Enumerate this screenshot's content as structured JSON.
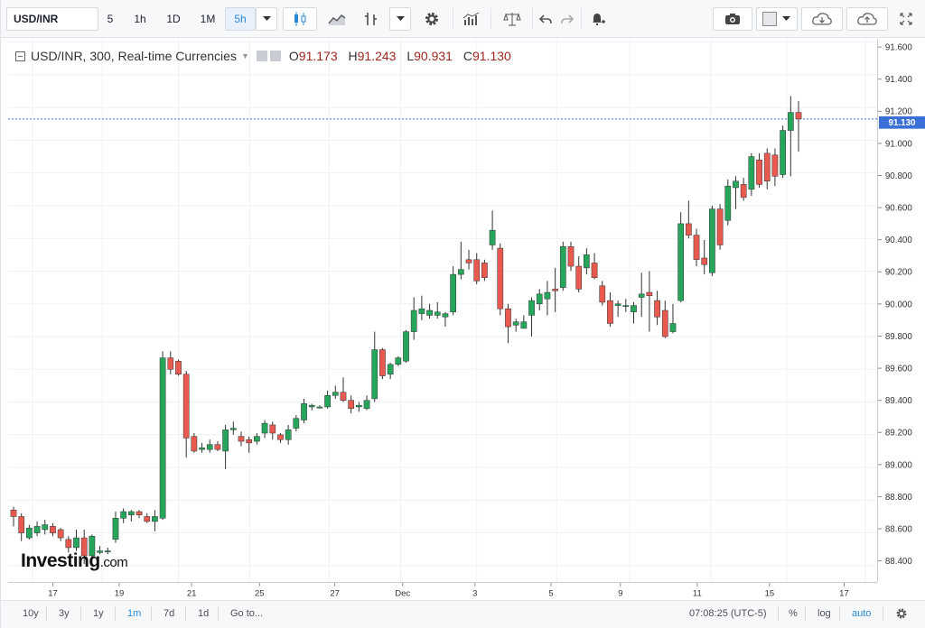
{
  "toolbar": {
    "symbol": "USD/INR",
    "intervals": [
      "5",
      "1h",
      "1D",
      "1M",
      "5h"
    ],
    "active_interval": "5h",
    "icons": [
      "candles-icon",
      "line-style-icon",
      "indicators-icon",
      "settings-icon",
      "chart-templates-icon",
      "compare-icon",
      "undo-icon",
      "redo-icon",
      "alert-icon",
      "camera-icon",
      "theme-icon",
      "load-cloud-icon",
      "save-cloud-icon",
      "fullscreen-icon"
    ]
  },
  "legend": {
    "title": "USD/INR, 300, Real-time Currencies",
    "open_label": "O",
    "open": "91.173",
    "high_label": "H",
    "high": "91.243",
    "low_label": "L",
    "low": "90.931",
    "close_label": "C",
    "close": "91.130"
  },
  "logo": {
    "text": "Investing",
    "suffix": ".com"
  },
  "bottombar": {
    "ranges": [
      "10y",
      "3y",
      "1y",
      "1m",
      "7d",
      "1d"
    ],
    "active_range": "1m",
    "goto": "Go to...",
    "time": "07:08:25 (UTC-5)",
    "percent": "%",
    "log": "log",
    "auto": "auto"
  },
  "colors": {
    "up": "#26a65b",
    "down": "#e8594f",
    "price_line": "#3a6fd8",
    "price_label_bg": "#3a6fd8"
  },
  "chart_data": {
    "type": "candlestick",
    "title": "USD/INR, 300, Real-time Currencies",
    "ylim": [
      88.3,
      91.62
    ],
    "yticks": [
      "91.600",
      "91.400",
      "91.200",
      "91.000",
      "90.800",
      "90.600",
      "90.400",
      "90.200",
      "90.000",
      "89.800",
      "89.600",
      "89.400",
      "89.200",
      "89.000",
      "88.800",
      "88.600",
      "88.400"
    ],
    "xticks": [
      "17",
      "19",
      "21",
      "25",
      "27",
      "Dec",
      "3",
      "5",
      "9",
      "11",
      "15",
      "17"
    ],
    "last_price": "91.130",
    "candles": [
      {
        "o": 88.74,
        "h": 88.76,
        "l": 88.64,
        "c": 88.7
      },
      {
        "o": 88.7,
        "h": 88.72,
        "l": 88.55,
        "c": 88.6
      },
      {
        "o": 88.57,
        "h": 88.65,
        "l": 88.56,
        "c": 88.63
      },
      {
        "o": 88.6,
        "h": 88.67,
        "l": 88.58,
        "c": 88.64
      },
      {
        "o": 88.62,
        "h": 88.68,
        "l": 88.59,
        "c": 88.65
      },
      {
        "o": 88.64,
        "h": 88.66,
        "l": 88.58,
        "c": 88.6
      },
      {
        "o": 88.62,
        "h": 88.63,
        "l": 88.55,
        "c": 88.57
      },
      {
        "o": 88.56,
        "h": 88.58,
        "l": 88.48,
        "c": 88.51
      },
      {
        "o": 88.51,
        "h": 88.62,
        "l": 88.49,
        "c": 88.57
      },
      {
        "o": 88.57,
        "h": 88.62,
        "l": 88.41,
        "c": 88.46
      },
      {
        "o": 88.46,
        "h": 88.59,
        "l": 88.44,
        "c": 88.58
      },
      {
        "o": 88.48,
        "h": 88.52,
        "l": 88.47,
        "c": 88.49
      },
      {
        "o": 88.49,
        "h": 88.51,
        "l": 88.47,
        "c": 88.49
      },
      {
        "o": 88.56,
        "h": 88.73,
        "l": 88.54,
        "c": 88.69
      },
      {
        "o": 88.69,
        "h": 88.75,
        "l": 88.66,
        "c": 88.73
      },
      {
        "o": 88.71,
        "h": 88.74,
        "l": 88.67,
        "c": 88.73
      },
      {
        "o": 88.73,
        "h": 88.74,
        "l": 88.69,
        "c": 88.71
      },
      {
        "o": 88.7,
        "h": 88.72,
        "l": 88.66,
        "c": 88.67
      },
      {
        "o": 88.67,
        "h": 88.74,
        "l": 88.61,
        "c": 88.7
      },
      {
        "o": 88.69,
        "h": 89.71,
        "l": 88.68,
        "c": 89.67
      },
      {
        "o": 89.67,
        "h": 89.71,
        "l": 89.57,
        "c": 89.6
      },
      {
        "o": 89.65,
        "h": 89.66,
        "l": 89.56,
        "c": 89.57
      },
      {
        "o": 89.57,
        "h": 89.59,
        "l": 89.06,
        "c": 89.18
      },
      {
        "o": 89.19,
        "h": 89.21,
        "l": 89.09,
        "c": 89.1
      },
      {
        "o": 89.11,
        "h": 89.15,
        "l": 89.09,
        "c": 89.12
      },
      {
        "o": 89.11,
        "h": 89.17,
        "l": 89.09,
        "c": 89.14
      },
      {
        "o": 89.14,
        "h": 89.16,
        "l": 89.1,
        "c": 89.11
      },
      {
        "o": 89.1,
        "h": 89.26,
        "l": 88.99,
        "c": 89.23
      },
      {
        "o": 89.23,
        "h": 89.28,
        "l": 89.2,
        "c": 89.24
      },
      {
        "o": 89.19,
        "h": 89.22,
        "l": 89.13,
        "c": 89.16
      },
      {
        "o": 89.17,
        "h": 89.19,
        "l": 89.09,
        "c": 89.15
      },
      {
        "o": 89.16,
        "h": 89.21,
        "l": 89.14,
        "c": 89.19
      },
      {
        "o": 89.21,
        "h": 89.29,
        "l": 89.18,
        "c": 89.27
      },
      {
        "o": 89.26,
        "h": 89.28,
        "l": 89.17,
        "c": 89.21
      },
      {
        "o": 89.2,
        "h": 89.21,
        "l": 89.15,
        "c": 89.17
      },
      {
        "o": 89.17,
        "h": 89.26,
        "l": 89.14,
        "c": 89.23
      },
      {
        "o": 89.24,
        "h": 89.32,
        "l": 89.22,
        "c": 89.3
      },
      {
        "o": 89.29,
        "h": 89.42,
        "l": 89.27,
        "c": 89.39
      },
      {
        "o": 89.37,
        "h": 89.39,
        "l": 89.35,
        "c": 89.38
      },
      {
        "o": 89.37,
        "h": 89.38,
        "l": 89.36,
        "c": 89.37
      },
      {
        "o": 89.37,
        "h": 89.47,
        "l": 89.36,
        "c": 89.44
      },
      {
        "o": 89.44,
        "h": 89.5,
        "l": 89.42,
        "c": 89.46
      },
      {
        "o": 89.46,
        "h": 89.55,
        "l": 89.4,
        "c": 89.41
      },
      {
        "o": 89.41,
        "h": 89.44,
        "l": 89.33,
        "c": 89.36
      },
      {
        "o": 89.37,
        "h": 89.4,
        "l": 89.34,
        "c": 89.38
      },
      {
        "o": 89.36,
        "h": 89.44,
        "l": 89.35,
        "c": 89.41
      },
      {
        "o": 89.42,
        "h": 89.83,
        "l": 89.4,
        "c": 89.72
      },
      {
        "o": 89.72,
        "h": 89.73,
        "l": 89.54,
        "c": 89.56
      },
      {
        "o": 89.57,
        "h": 89.64,
        "l": 89.54,
        "c": 89.63
      },
      {
        "o": 89.63,
        "h": 89.68,
        "l": 89.62,
        "c": 89.67
      },
      {
        "o": 89.65,
        "h": 89.84,
        "l": 89.64,
        "c": 89.83
      },
      {
        "o": 89.83,
        "h": 90.04,
        "l": 89.78,
        "c": 89.96
      },
      {
        "o": 89.94,
        "h": 90.05,
        "l": 89.9,
        "c": 89.97
      },
      {
        "o": 89.93,
        "h": 90.0,
        "l": 89.91,
        "c": 89.96
      },
      {
        "o": 89.93,
        "h": 90.01,
        "l": 89.91,
        "c": 89.95
      },
      {
        "o": 89.92,
        "h": 89.95,
        "l": 89.86,
        "c": 89.94
      },
      {
        "o": 89.95,
        "h": 90.23,
        "l": 89.93,
        "c": 90.18
      },
      {
        "o": 90.18,
        "h": 90.38,
        "l": 90.15,
        "c": 90.21
      },
      {
        "o": 90.27,
        "h": 90.33,
        "l": 90.21,
        "c": 90.25
      },
      {
        "o": 90.27,
        "h": 90.31,
        "l": 90.12,
        "c": 90.14
      },
      {
        "o": 90.25,
        "h": 90.27,
        "l": 90.14,
        "c": 90.16
      },
      {
        "o": 90.36,
        "h": 90.57,
        "l": 90.33,
        "c": 90.45
      },
      {
        "o": 90.34,
        "h": 90.37,
        "l": 89.93,
        "c": 89.97
      },
      {
        "o": 89.97,
        "h": 90.0,
        "l": 89.76,
        "c": 89.86
      },
      {
        "o": 89.87,
        "h": 89.91,
        "l": 89.83,
        "c": 89.89
      },
      {
        "o": 89.85,
        "h": 89.93,
        "l": 89.85,
        "c": 89.89
      },
      {
        "o": 89.93,
        "h": 90.04,
        "l": 89.8,
        "c": 90.02
      },
      {
        "o": 90.0,
        "h": 90.09,
        "l": 89.96,
        "c": 90.06
      },
      {
        "o": 90.03,
        "h": 90.14,
        "l": 89.93,
        "c": 90.07
      },
      {
        "o": 90.09,
        "h": 90.22,
        "l": 89.95,
        "c": 90.08
      },
      {
        "o": 90.1,
        "h": 90.38,
        "l": 90.08,
        "c": 90.35
      },
      {
        "o": 90.35,
        "h": 90.38,
        "l": 90.2,
        "c": 90.23
      },
      {
        "o": 90.23,
        "h": 90.29,
        "l": 90.07,
        "c": 90.09
      },
      {
        "o": 90.22,
        "h": 90.34,
        "l": 90.18,
        "c": 90.3
      },
      {
        "o": 90.25,
        "h": 90.31,
        "l": 90.15,
        "c": 90.16
      },
      {
        "o": 90.11,
        "h": 90.14,
        "l": 89.99,
        "c": 90.01
      },
      {
        "o": 90.02,
        "h": 90.07,
        "l": 89.86,
        "c": 89.88
      },
      {
        "o": 89.99,
        "h": 90.02,
        "l": 89.92,
        "c": 90.0
      },
      {
        "o": 89.99,
        "h": 90.03,
        "l": 89.95,
        "c": 89.99
      },
      {
        "o": 89.95,
        "h": 90.01,
        "l": 89.88,
        "c": 89.99
      },
      {
        "o": 90.04,
        "h": 90.19,
        "l": 89.92,
        "c": 90.06
      },
      {
        "o": 90.07,
        "h": 90.2,
        "l": 89.83,
        "c": 90.05
      },
      {
        "o": 90.02,
        "h": 90.08,
        "l": 89.87,
        "c": 89.92
      },
      {
        "o": 89.96,
        "h": 90.02,
        "l": 89.79,
        "c": 89.8
      },
      {
        "o": 89.83,
        "h": 90.0,
        "l": 89.82,
        "c": 89.88
      },
      {
        "o": 90.02,
        "h": 90.56,
        "l": 90.01,
        "c": 90.49
      },
      {
        "o": 90.49,
        "h": 90.63,
        "l": 90.4,
        "c": 90.42
      },
      {
        "o": 90.42,
        "h": 90.46,
        "l": 90.23,
        "c": 90.27
      },
      {
        "o": 90.28,
        "h": 90.39,
        "l": 90.18,
        "c": 90.24
      },
      {
        "o": 90.19,
        "h": 90.6,
        "l": 90.17,
        "c": 90.58
      },
      {
        "o": 90.58,
        "h": 90.61,
        "l": 90.33,
        "c": 90.36
      },
      {
        "o": 90.51,
        "h": 90.76,
        "l": 90.48,
        "c": 90.72
      },
      {
        "o": 90.71,
        "h": 90.78,
        "l": 90.58,
        "c": 90.75
      },
      {
        "o": 90.73,
        "h": 90.77,
        "l": 90.63,
        "c": 90.65
      },
      {
        "o": 90.7,
        "h": 90.92,
        "l": 90.66,
        "c": 90.9
      },
      {
        "o": 90.88,
        "h": 90.92,
        "l": 90.71,
        "c": 90.73
      },
      {
        "o": 90.92,
        "h": 90.95,
        "l": 90.7,
        "c": 90.75
      },
      {
        "o": 90.91,
        "h": 90.95,
        "l": 90.72,
        "c": 90.78
      },
      {
        "o": 90.79,
        "h": 91.09,
        "l": 90.77,
        "c": 91.06
      },
      {
        "o": 91.06,
        "h": 91.27,
        "l": 90.78,
        "c": 91.17
      },
      {
        "o": 91.17,
        "h": 91.24,
        "l": 90.93,
        "c": 91.13
      }
    ]
  }
}
